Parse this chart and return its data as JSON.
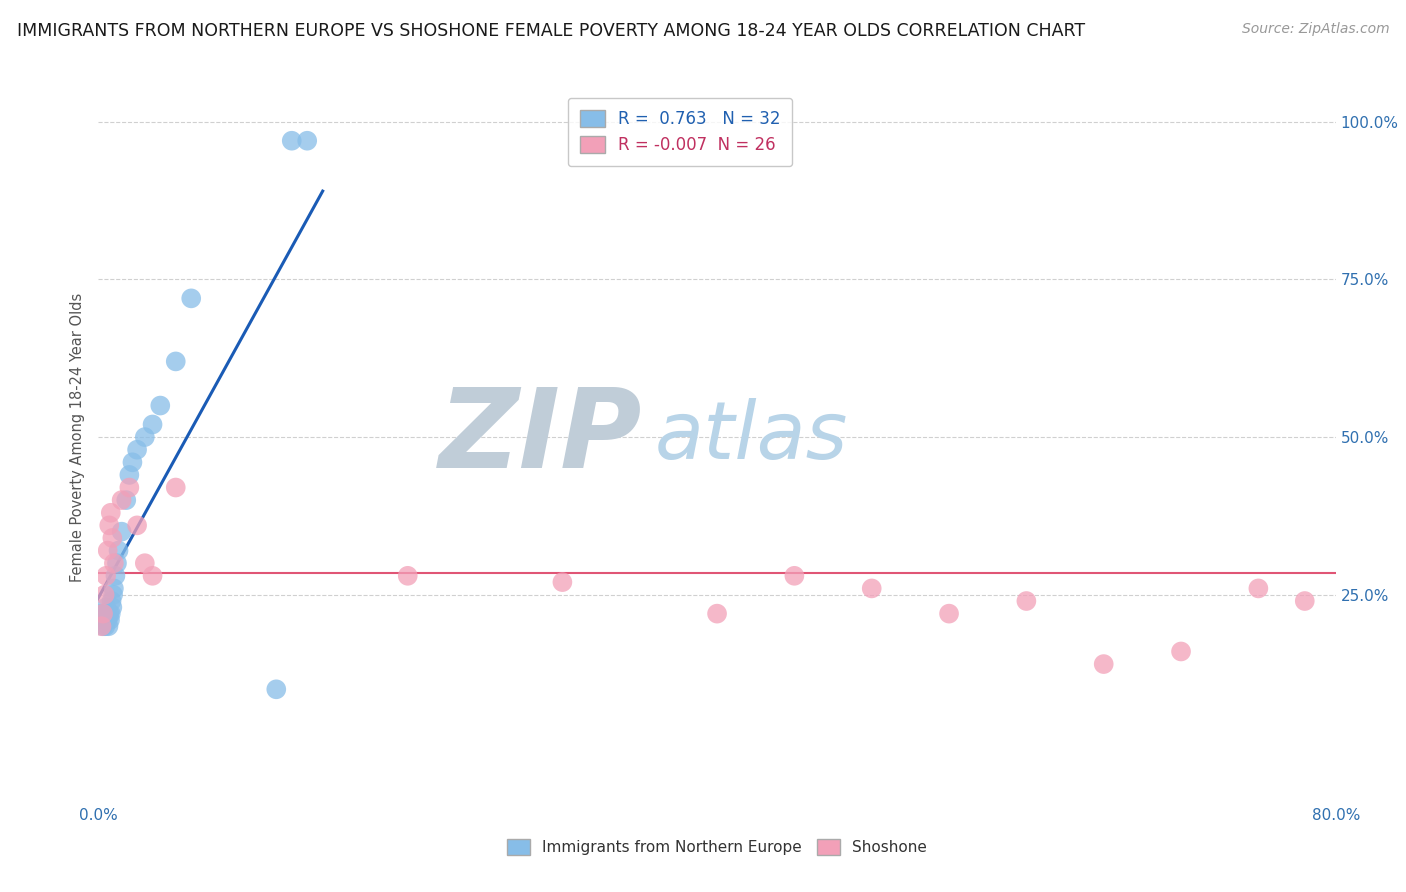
{
  "title": "IMMIGRANTS FROM NORTHERN EUROPE VS SHOSHONE FEMALE POVERTY AMONG 18-24 YEAR OLDS CORRELATION CHART",
  "source": "Source: ZipAtlas.com",
  "ylabel": "Female Poverty Among 18-24 Year Olds",
  "xlim": [
    0.0,
    80.0
  ],
  "ylim": [
    -8.0,
    108.0
  ],
  "blue_R": 0.763,
  "blue_N": 32,
  "pink_R": -0.007,
  "pink_N": 26,
  "blue_color": "#87bde8",
  "pink_color": "#f2a0b8",
  "regression_blue_color": "#1a5bb5",
  "regression_pink_color": "#e05575",
  "watermark_zip_color": "#c0cdd8",
  "watermark_atlas_color": "#b8d4e8",
  "watermark_fontsize": 80,
  "blue_x": [
    0.2,
    0.3,
    0.35,
    0.4,
    0.45,
    0.5,
    0.55,
    0.6,
    0.65,
    0.7,
    0.75,
    0.8,
    0.85,
    0.9,
    0.95,
    1.0,
    1.1,
    1.2,
    1.3,
    1.5,
    1.8,
    2.0,
    2.2,
    2.5,
    3.0,
    3.5,
    4.0,
    5.0,
    6.0,
    11.5,
    12.5,
    13.5
  ],
  "blue_y": [
    22.0,
    20.0,
    21.0,
    22.0,
    20.0,
    23.0,
    22.0,
    21.0,
    20.0,
    22.0,
    21.0,
    22.0,
    24.0,
    23.0,
    25.0,
    26.0,
    28.0,
    30.0,
    32.0,
    35.0,
    40.0,
    44.0,
    46.0,
    48.0,
    50.0,
    52.0,
    55.0,
    62.0,
    72.0,
    10.0,
    97.0,
    97.0
  ],
  "pink_x": [
    0.2,
    0.3,
    0.4,
    0.5,
    0.6,
    0.7,
    0.8,
    0.9,
    1.0,
    1.5,
    2.0,
    2.5,
    3.0,
    3.5,
    5.0,
    20.0,
    30.0,
    40.0,
    45.0,
    50.0,
    55.0,
    60.0,
    65.0,
    70.0,
    75.0,
    78.0
  ],
  "pink_y": [
    20.0,
    22.0,
    25.0,
    28.0,
    32.0,
    36.0,
    38.0,
    34.0,
    30.0,
    40.0,
    42.0,
    36.0,
    30.0,
    28.0,
    42.0,
    28.0,
    27.0,
    22.0,
    28.0,
    26.0,
    22.0,
    24.0,
    14.0,
    16.0,
    26.0,
    24.0
  ],
  "grid_color": "#d0d0d0",
  "background_color": "#ffffff",
  "title_fontsize": 12.5,
  "source_fontsize": 10,
  "legend_fontsize": 12,
  "axis_label_color": "#3070b0",
  "ylabel_color": "#555555",
  "ylabel_fontsize": 10.5
}
